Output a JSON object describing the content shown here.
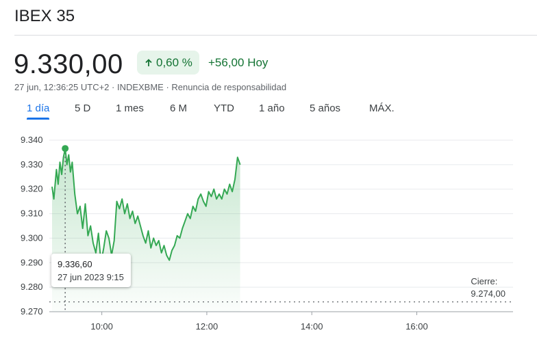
{
  "index_name": "IBEX 35",
  "price": "9.330,00",
  "change_pct": "0,60 %",
  "change_abs": "+56,00 Hoy",
  "meta_text": "27 jun, 12:36:25 UTC+2 · INDEXBME · Renuncia de responsabilidad",
  "tabs": [
    {
      "label": "1 día",
      "active": true
    },
    {
      "label": "5 D",
      "active": false
    },
    {
      "label": "1 mes",
      "active": false
    },
    {
      "label": "6 M",
      "active": false
    },
    {
      "label": "YTD",
      "active": false
    },
    {
      "label": "1 año",
      "active": false
    },
    {
      "label": "5 años",
      "active": false
    },
    {
      "label": "MÁX.",
      "active": false
    }
  ],
  "tooltip": {
    "value": "9.336,60",
    "datetime": "27 jun 2023 9:15"
  },
  "close_info": {
    "label": "Cierre:",
    "value": "9.274,00"
  },
  "colors": {
    "up": "#137333",
    "line": "#34a853",
    "accent": "#1a73e8"
  },
  "chart_data": {
    "type": "area",
    "y_ticks": [
      "9.340",
      "9.330",
      "9.320",
      "9.310",
      "9.300",
      "9.290",
      "9.280",
      "9.270"
    ],
    "x_ticks": [
      "10:00",
      "12:00",
      "14:00",
      "16:00"
    ],
    "ylim": [
      9270,
      9340
    ],
    "xlim_minutes": [
      540,
      1070
    ],
    "previous_close": 9274,
    "grid": true,
    "series": [
      {
        "x": [
          540,
          542,
          545,
          547,
          549,
          551,
          553,
          555,
          557,
          559,
          561,
          563,
          566,
          569,
          572,
          575,
          578,
          581,
          584,
          587,
          590,
          593,
          596,
          599,
          602,
          605,
          608,
          611,
          614,
          617,
          620,
          623,
          626,
          629,
          632,
          635,
          638,
          641,
          644,
          647,
          650,
          653,
          656,
          659,
          662,
          665,
          668,
          671,
          674,
          677,
          680,
          683,
          686,
          689,
          692,
          695,
          698,
          701,
          704,
          707,
          710,
          713,
          716,
          719,
          722,
          725,
          728,
          731,
          734,
          737,
          740,
          743,
          746,
          749,
          752,
          755
        ],
        "y": [
          9321,
          9316,
          9328,
          9322,
          9331,
          9326,
          9333,
          9336.6,
          9330,
          9334,
          9327,
          9331,
          9318,
          9310,
          9313,
          9304,
          9314,
          9301,
          9305,
          9298,
          9294,
          9302,
          9290,
          9296,
          9303,
          9300,
          9293,
          9299,
          9315,
          9312,
          9316,
          9310,
          9314,
          9308,
          9311,
          9306,
          9309,
          9305,
          9301,
          9298,
          9303,
          9296,
          9300,
          9297,
          9299,
          9294,
          9297,
          9293,
          9291,
          9295,
          9297,
          9301,
          9300,
          9304,
          9307,
          9310,
          9308,
          9313,
          9311,
          9316,
          9318,
          9315,
          9313,
          9319,
          9317,
          9320,
          9316,
          9318,
          9316,
          9320,
          9318,
          9322,
          9319,
          9324,
          9333,
          9330
        ]
      }
    ]
  }
}
